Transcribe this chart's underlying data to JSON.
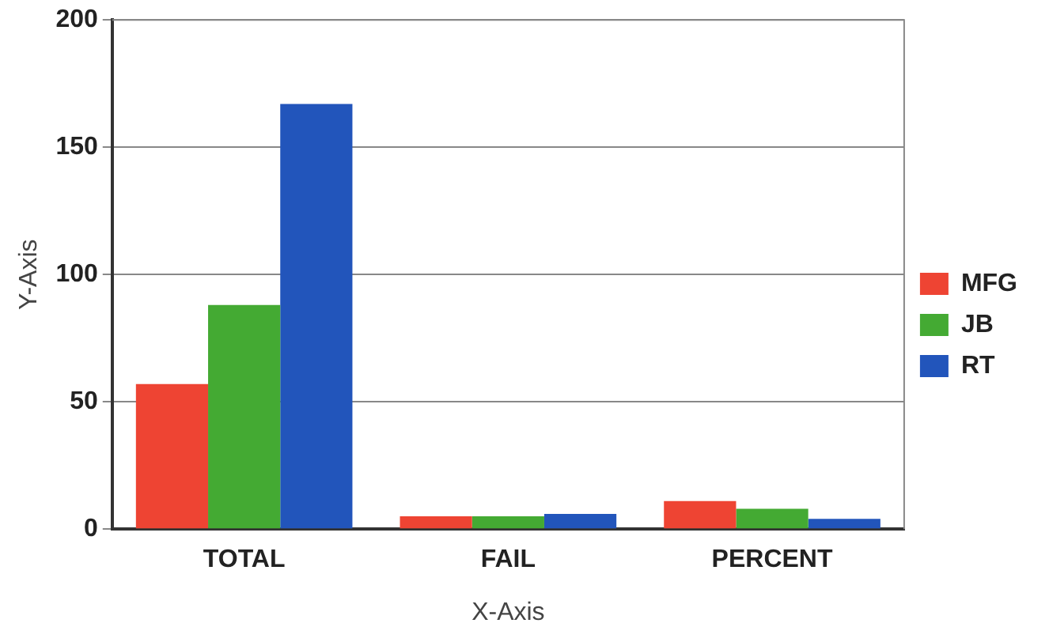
{
  "chart_data": {
    "type": "bar",
    "xlabel": "X-Axis",
    "ylabel": "Y-Axis",
    "categories": [
      "TOTAL",
      "FAIL",
      "PERCENT"
    ],
    "series": [
      {
        "name": "MFG",
        "color": "#ee4433",
        "values": [
          57,
          5,
          11
        ]
      },
      {
        "name": "JB",
        "color": "#44aa33",
        "values": [
          88,
          5,
          8
        ]
      },
      {
        "name": "RT",
        "color": "#2255bb",
        "values": [
          167,
          6,
          4
        ]
      }
    ],
    "ylim": [
      0,
      200
    ],
    "yticks": [
      0,
      50,
      100,
      150,
      200
    ],
    "grid": "y",
    "legend": "right"
  }
}
